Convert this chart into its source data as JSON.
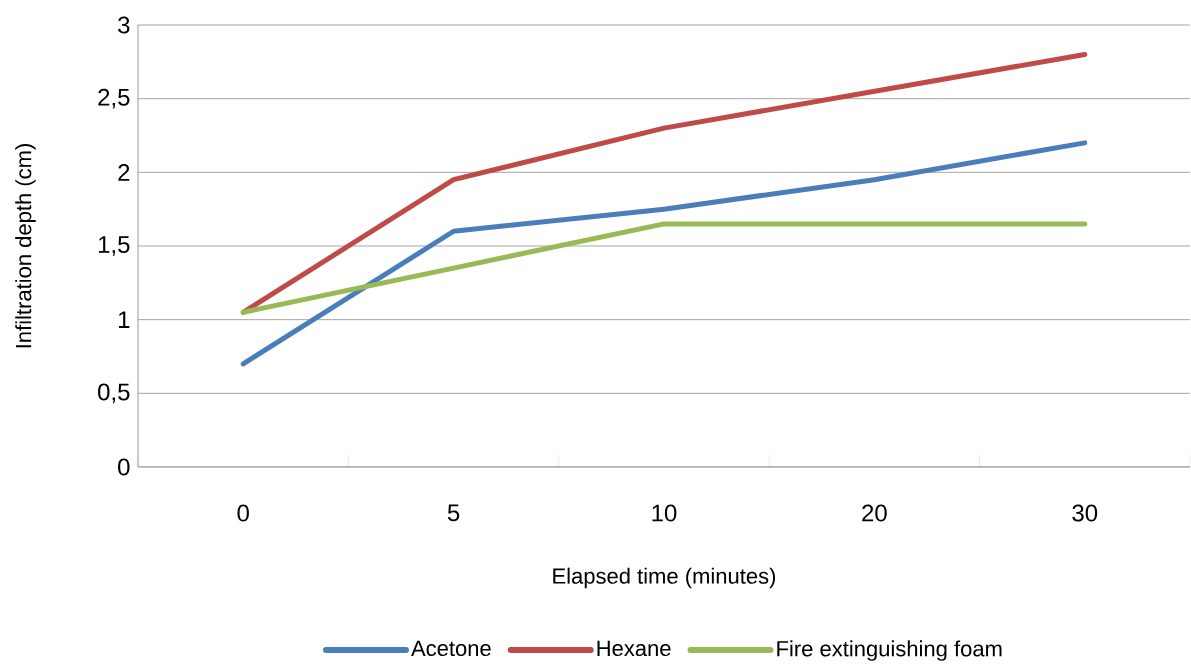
{
  "chart_data": {
    "type": "line",
    "xlabel": "Elapsed time (minutes)",
    "ylabel": "Infiltration depth (cm)",
    "categories": [
      "0",
      "5",
      "10",
      "20",
      "30"
    ],
    "series": [
      {
        "name": "Acetone",
        "color": "#4a7ebb",
        "values": [
          0.7,
          1.6,
          1.75,
          1.95,
          2.2
        ]
      },
      {
        "name": "Hexane",
        "color": "#be4b48",
        "values": [
          1.05,
          1.95,
          2.3,
          2.55,
          2.8
        ]
      },
      {
        "name": "Fire extinguishing foam",
        "color": "#98b954",
        "values": [
          1.05,
          1.35,
          1.65,
          1.65,
          1.65
        ]
      }
    ],
    "ylim": [
      0,
      3
    ],
    "yticks": [
      0,
      {
        "value": 0.5,
        "label": "0,5"
      },
      1,
      {
        "value": 1.5,
        "label": "1,5"
      },
      2,
      {
        "value": 2.5,
        "label": "2,5"
      },
      3
    ],
    "grid": "y",
    "legend": "bottom",
    "marker": "none",
    "line_style": "solid"
  }
}
